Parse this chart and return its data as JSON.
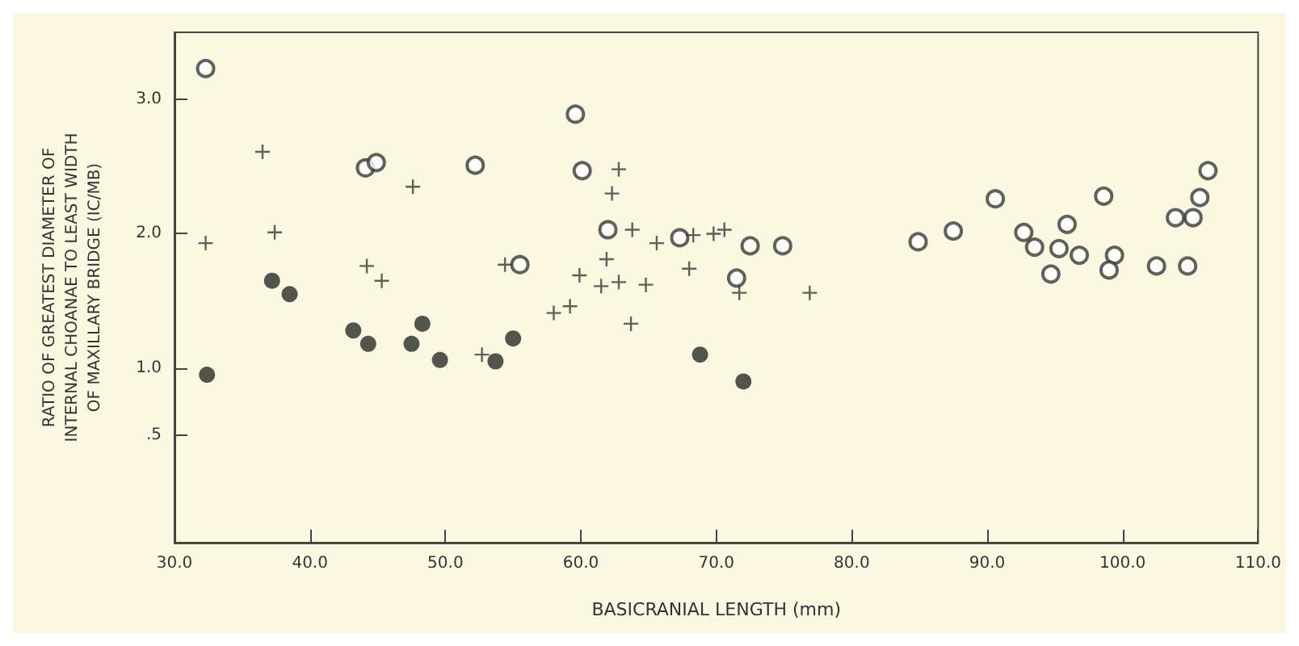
{
  "chart_data": {
    "type": "scatter",
    "xlabel": "BASICRANIAL LENGTH (mm)",
    "ylabel": "RATIO OF GREATEST DIAMETER OF\nINTERNAL CHOANAE TO LEAST WIDTH\nOF MAXILLARY BRIDGE (IC/MB)",
    "xlim": [
      30,
      110
    ],
    "xticks": [
      {
        "value": 30,
        "label": "30.0"
      },
      {
        "value": 40,
        "label": "40.0"
      },
      {
        "value": 50,
        "label": "50.0"
      },
      {
        "value": 60,
        "label": "60.0"
      },
      {
        "value": 70,
        "label": "70.0"
      },
      {
        "value": 80,
        "label": "80.0"
      },
      {
        "value": 90,
        "label": "90.0"
      },
      {
        "value": 100,
        "label": "100.0"
      },
      {
        "value": 110,
        "label": "110.0"
      }
    ],
    "ylim": [
      -0.3,
      3.5
    ],
    "yticks": [
      {
        "value": 0.5,
        "label": ".5"
      },
      {
        "value": 1,
        "label": "1.0"
      },
      {
        "value": 2,
        "label": "2.0"
      },
      {
        "value": 3,
        "label": "3.0"
      }
    ],
    "grid": false,
    "series": [
      {
        "color": "#3a3a3a",
        "marker": "circle",
        "x": [
          32.3,
          44.1,
          44.9,
          52.2,
          55.5,
          59.6,
          60.1,
          62.0,
          67.3,
          72.5,
          74.9,
          71.5,
          84.9,
          87.5,
          90.6,
          92.7,
          93.5,
          95.9,
          94.7,
          95.3,
          96.8,
          98.6,
          99.4,
          99.0,
          102.5,
          104.8,
          103.9,
          105.2,
          105.7,
          106.3
        ],
        "values": [
          3.23,
          2.49,
          2.53,
          2.51,
          1.77,
          2.89,
          2.47,
          2.03,
          1.97,
          1.91,
          1.91,
          1.67,
          1.94,
          2.02,
          2.26,
          2.01,
          1.9,
          2.07,
          1.7,
          1.89,
          1.84,
          2.28,
          1.84,
          1.73,
          1.76,
          1.76,
          2.12,
          2.12,
          2.27,
          2.47
        ]
      },
      {
        "color": "#3a3a3a",
        "marker": "cross",
        "x": [
          36.5,
          32.3,
          37.4,
          47.6,
          44.2,
          45.3,
          54.4,
          58.0,
          52.7,
          62.8,
          62.3,
          63.8,
          65.6,
          68.3,
          69.8,
          70.6,
          61.9,
          59.9,
          61.5,
          62.8,
          64.8,
          68.0,
          71.7,
          76.9,
          59.2,
          63.7
        ],
        "values": [
          2.61,
          1.93,
          2.01,
          2.35,
          1.76,
          1.65,
          1.77,
          1.41,
          1.1,
          2.48,
          2.3,
          2.03,
          1.93,
          1.99,
          2.0,
          2.03,
          1.81,
          1.69,
          1.61,
          1.64,
          1.62,
          1.74,
          1.56,
          1.56,
          1.46,
          1.33
        ]
      },
      {
        "color": "#2a2a2a",
        "marker": "circle",
        "x": [
          32.4,
          37.2,
          38.5,
          43.2,
          44.3,
          48.3,
          47.5,
          49.6,
          53.7,
          55.0,
          68.8,
          72.0
        ],
        "values": [
          0.95,
          1.65,
          1.55,
          1.28,
          1.18,
          1.33,
          1.18,
          1.06,
          1.05,
          1.22,
          1.1,
          0.9
        ]
      }
    ]
  }
}
